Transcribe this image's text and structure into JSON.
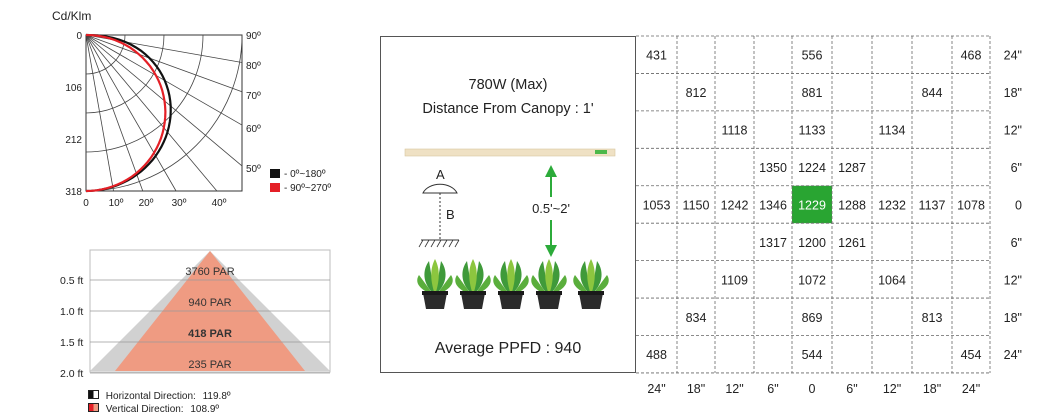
{
  "colors": {
    "horizontal": "#111111",
    "vertical": "#e41f26",
    "cone_outer": "#cfcfcf",
    "cone_inner": "#ef9b82",
    "highlight_cell": "#29a532",
    "arrow": "#2cab3a"
  },
  "chart_data": [
    {
      "type": "polar",
      "ylabel": "Cd/Klm",
      "radial_ticks": [
        "0",
        "106",
        "212",
        "318"
      ],
      "x_ticks": [
        "0",
        "10º",
        "20º",
        "30º",
        "40º"
      ],
      "angle_ticks": [
        "90º",
        "80º",
        "70º",
        "60º",
        "50º"
      ],
      "series": [
        {
          "name": "0º~180º",
          "max_intensity": 318
        },
        {
          "name": "90º~270º",
          "max_intensity": 318
        }
      ]
    },
    {
      "type": "bar",
      "categories": [
        "0.5 ft",
        "1.0 ft",
        "1.5 ft",
        "2.0 ft"
      ],
      "values": [
        3760,
        940,
        418,
        235
      ],
      "value_labels": [
        "3760 PAR",
        "940 PAR",
        "418 PAR",
        "235 PAR"
      ],
      "ylabel": "",
      "legend": [
        {
          "label": "Horizontal Direction:",
          "value": "119.8º"
        },
        {
          "label": "Vertical Direction:",
          "value": "108.9º"
        }
      ]
    },
    {
      "type": "heatmap",
      "x_labels": [
        "24\"",
        "18\"",
        "12\"",
        "6\"",
        "0",
        "6\"",
        "12\"",
        "18\"",
        "24\""
      ],
      "y_labels": [
        "24\"",
        "18\"",
        "12\"",
        "6\"",
        "0",
        "6\"",
        "12\"",
        "18\"",
        "24\""
      ],
      "highlight": [
        4,
        4
      ],
      "values": [
        [
          "431",
          "",
          "",
          "",
          "556",
          "",
          "",
          "",
          "468"
        ],
        [
          "",
          "812",
          "",
          "",
          "881",
          "",
          "",
          "844",
          ""
        ],
        [
          "",
          "",
          "1118",
          "",
          "1133",
          "",
          "1134",
          "",
          ""
        ],
        [
          "",
          "",
          "",
          "1350",
          "1224",
          "1287",
          "",
          "",
          ""
        ],
        [
          "1053",
          "1150",
          "1242",
          "1346",
          "1229",
          "1288",
          "1232",
          "1137",
          "1078"
        ],
        [
          "",
          "",
          "",
          "1317",
          "1200",
          "1261",
          "",
          "",
          ""
        ],
        [
          "",
          "",
          "1109",
          "",
          "1072",
          "",
          "1064",
          "",
          ""
        ],
        [
          "",
          "834",
          "",
          "",
          "869",
          "",
          "",
          "813",
          ""
        ],
        [
          "488",
          "",
          "",
          "",
          "544",
          "",
          "",
          "",
          "454"
        ]
      ]
    }
  ],
  "panel": {
    "power": "780W (Max)",
    "distance": "Distance From Canopy : 1'",
    "label_a": "A",
    "label_b": "B",
    "range": "0.5'~2'",
    "average": "Average PPFD : 940"
  }
}
